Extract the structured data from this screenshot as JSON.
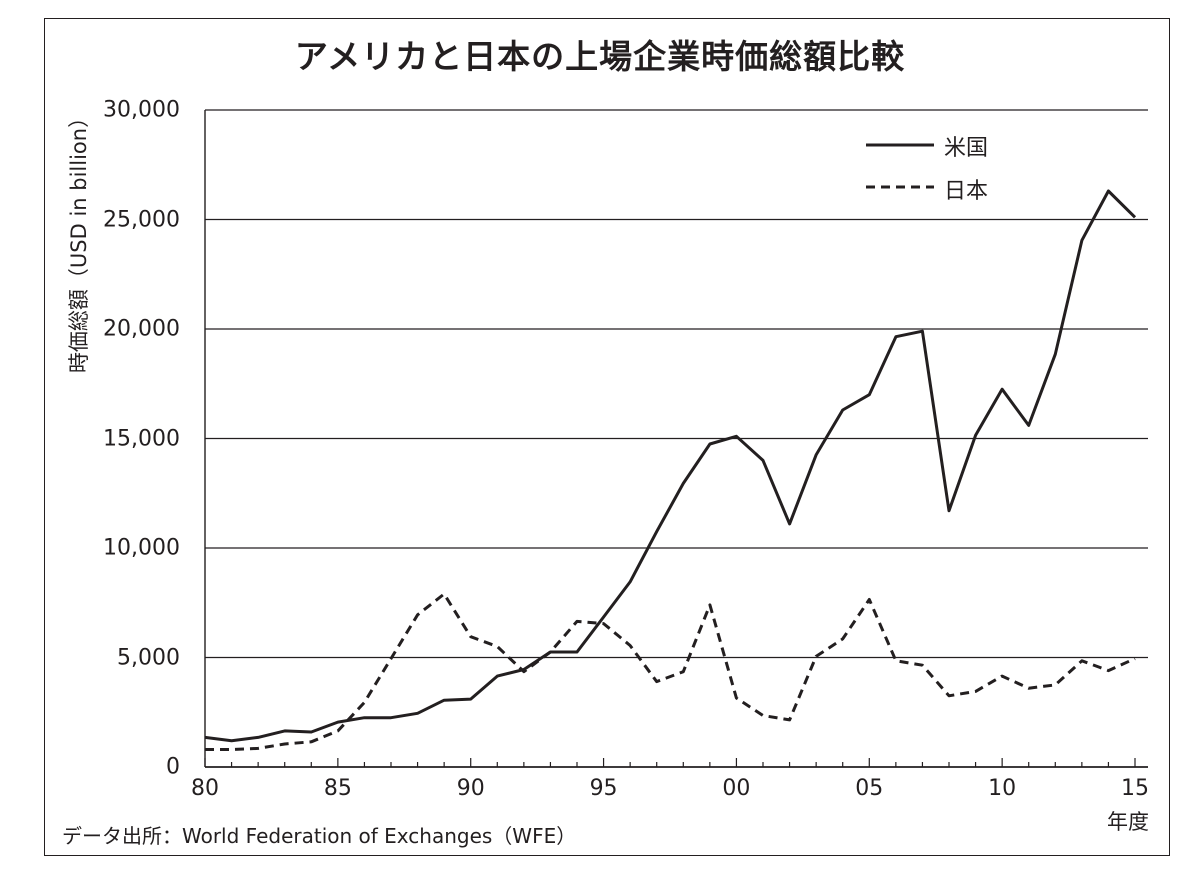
{
  "title": "アメリカと日本の上場企業時価総額比較",
  "source": "データ出所：World Federation of Exchanges（WFE）",
  "chart_data": {
    "type": "line",
    "title": "アメリカと日本の上場企業時価総額比較",
    "ylabel": "時価総額（USD in billion）",
    "xlabel": "年度",
    "ylim": [
      0,
      30000
    ],
    "xlim": [
      1980,
      2015
    ],
    "grid": "horizontal",
    "legend_position": "top-right",
    "y_ticks": [
      "0",
      "5,000",
      "10,000",
      "15,000",
      "20,000",
      "25,000",
      "30,000"
    ],
    "y_tick_values": [
      0,
      5000,
      10000,
      15000,
      20000,
      25000,
      30000
    ],
    "x_ticks": [
      "80",
      "85",
      "90",
      "95",
      "00",
      "05",
      "10",
      "15"
    ],
    "x_tick_values": [
      1980,
      1985,
      1990,
      1995,
      2000,
      2005,
      2010,
      2015
    ],
    "x": [
      1980,
      1981,
      1982,
      1983,
      1984,
      1985,
      1986,
      1987,
      1988,
      1989,
      1990,
      1991,
      1992,
      1993,
      1994,
      1995,
      1996,
      1997,
      1998,
      1999,
      2000,
      2001,
      2002,
      2003,
      2004,
      2005,
      2006,
      2007,
      2008,
      2009,
      2010,
      2011,
      2012,
      2013,
      2014,
      2015
    ],
    "series": [
      {
        "name": "米国",
        "style": "solid",
        "color": "#231f20",
        "values": [
          1350,
          1200,
          1350,
          1650,
          1600,
          2050,
          2250,
          2250,
          2450,
          3050,
          3100,
          4150,
          4450,
          5250,
          5250,
          6850,
          8450,
          10750,
          12950,
          14750,
          15100,
          14000,
          11100,
          14250,
          16300,
          17000,
          19650,
          19900,
          11700,
          15150,
          17250,
          15600,
          18850,
          24050,
          26300,
          25100
        ]
      },
      {
        "name": "日本",
        "style": "dashed",
        "color": "#231f20",
        "values": [
          800,
          800,
          850,
          1050,
          1150,
          1650,
          2950,
          4950,
          6950,
          7900,
          5950,
          5500,
          4350,
          5250,
          6650,
          6550,
          5550,
          3900,
          4350,
          7400,
          3150,
          2350,
          2150,
          5050,
          5850,
          7650,
          4850,
          4650,
          3250,
          3450,
          4150,
          3600,
          3750,
          4850,
          4400,
          4950
        ]
      }
    ]
  }
}
